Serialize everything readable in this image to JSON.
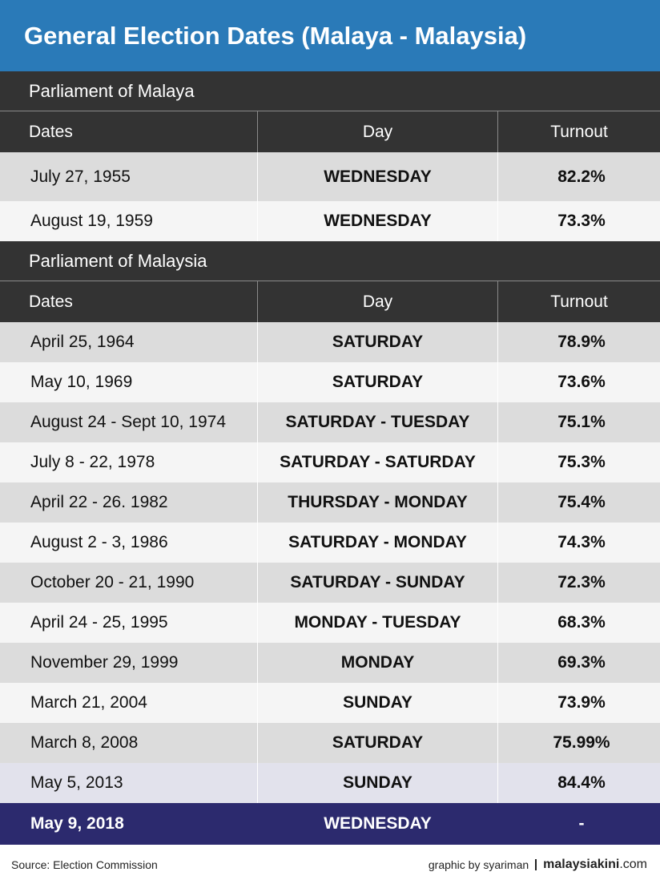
{
  "title": "General Election Dates (Malaya - Malaysia)",
  "columns": {
    "dates": "Dates",
    "day": "Day",
    "turnout": "Turnout"
  },
  "sections": [
    {
      "title": "Parliament of Malaya",
      "rows": [
        {
          "date": "July 27, 1955",
          "day": "WEDNESDAY",
          "turnout": "82.2%"
        },
        {
          "date": "August 19, 1959",
          "day": "WEDNESDAY",
          "turnout": "73.3%"
        }
      ]
    },
    {
      "title": "Parliament of Malaysia",
      "rows": [
        {
          "date": "April 25, 1964",
          "day": "SATURDAY",
          "turnout": "78.9%"
        },
        {
          "date": "May 10, 1969",
          "day": "SATURDAY",
          "turnout": "73.6%"
        },
        {
          "date": "August 24 - Sept 10, 1974",
          "day": "SATURDAY - TUESDAY",
          "turnout": "75.1%"
        },
        {
          "date": "July 8 - 22, 1978",
          "day": "SATURDAY - SATURDAY",
          "turnout": "75.3%"
        },
        {
          "date": "April 22 - 26. 1982",
          "day": "THURSDAY - MONDAY",
          "turnout": "75.4%"
        },
        {
          "date": "August 2 - 3, 1986",
          "day": "SATURDAY - MONDAY",
          "turnout": "74.3%"
        },
        {
          "date": "October 20 - 21, 1990",
          "day": "SATURDAY - SUNDAY",
          "turnout": "72.3%"
        },
        {
          "date": "April 24 - 25, 1995",
          "day": "MONDAY - TUESDAY",
          "turnout": "68.3%"
        },
        {
          "date": "November 29, 1999",
          "day": "MONDAY",
          "turnout": "69.3%"
        },
        {
          "date": "March 21, 2004",
          "day": "SUNDAY",
          "turnout": "73.9%"
        },
        {
          "date": "March 8, 2008",
          "day": "SATURDAY",
          "turnout": "75.99%"
        },
        {
          "date": "May 5, 2013",
          "day": "SUNDAY",
          "turnout": "84.4%"
        },
        {
          "date": "May 9, 2018",
          "day": "WEDNESDAY",
          "turnout": "-"
        }
      ]
    }
  ],
  "footer": {
    "source": "Source: Election Commission",
    "credit": "graphic by syariman",
    "brand_bold": "malaysiakini",
    "brand_suffix": ".com"
  },
  "colors": {
    "title_bar": "#2a7ab8",
    "header": "#333333",
    "highlight_row": "#2c2a6e"
  }
}
